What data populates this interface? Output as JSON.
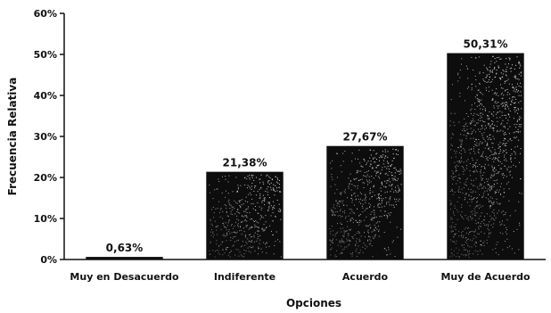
{
  "chart_data": {
    "type": "bar",
    "categories": [
      "Muy en Desacuerdo",
      "Indiferente",
      "Acuerdo",
      "Muy de Acuerdo"
    ],
    "values": [
      0.63,
      21.38,
      27.67,
      50.31
    ],
    "data_labels": [
      "0,63%",
      "21,38%",
      "27,67%",
      "50,31%"
    ],
    "yticks": [
      0,
      10,
      20,
      30,
      40,
      50,
      60
    ],
    "ytick_labels": [
      "0%",
      "10%",
      "20%",
      "30%",
      "40%",
      "50%",
      "60%"
    ],
    "ylim": [
      0,
      60
    ],
    "xlabel": "Opciones",
    "ylabel": "Frecuencia Relativa",
    "grid": false,
    "legend": false,
    "bar_color": "#0d0d0d",
    "speckle_color": "#e8e8e8"
  }
}
